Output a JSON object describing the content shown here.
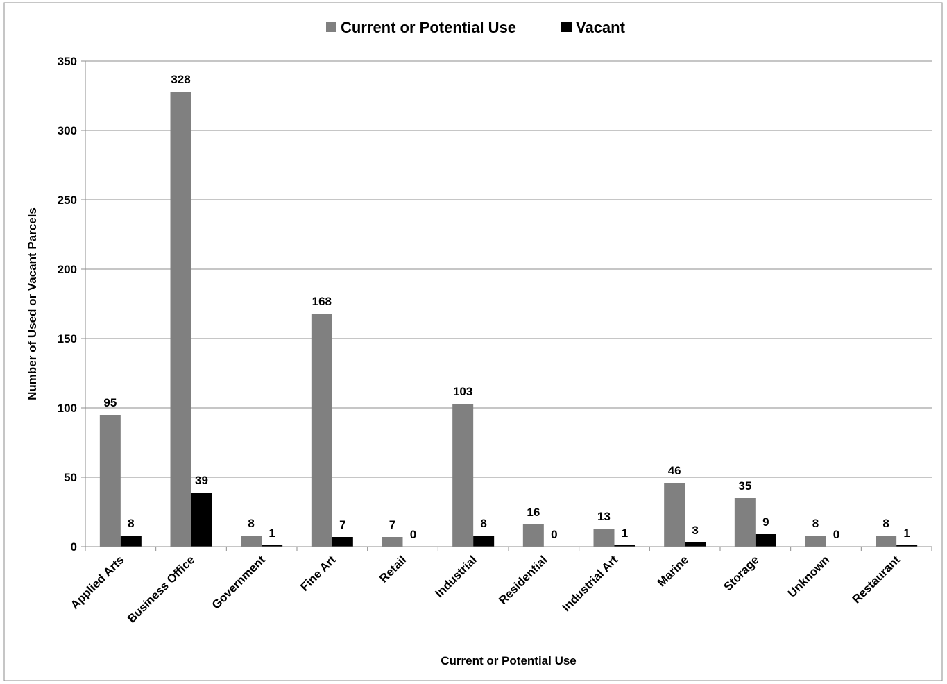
{
  "chart_data": {
    "type": "bar",
    "title": "",
    "xlabel": "Current or Potential Use",
    "ylabel": "Number of Used or Vacant Parcels",
    "ylim": [
      0,
      350
    ],
    "yticks": [
      0,
      50,
      100,
      150,
      200,
      250,
      300,
      350
    ],
    "grid": true,
    "legend_position": "top",
    "categories": [
      "Applied Arts",
      "Business Office",
      "Government",
      "Fine Art",
      "Retail",
      "Industrial",
      "Residential",
      "Industrial Art",
      "Marine",
      "Storage",
      "Unknown",
      "Restaurant"
    ],
    "series": [
      {
        "name": "Current or Potential Use",
        "color": "#808080",
        "values": [
          95,
          328,
          8,
          168,
          7,
          103,
          16,
          13,
          46,
          35,
          8,
          8
        ]
      },
      {
        "name": "Vacant",
        "color": "#000000",
        "values": [
          8,
          39,
          1,
          7,
          0,
          8,
          0,
          1,
          3,
          9,
          0,
          1
        ]
      }
    ]
  }
}
